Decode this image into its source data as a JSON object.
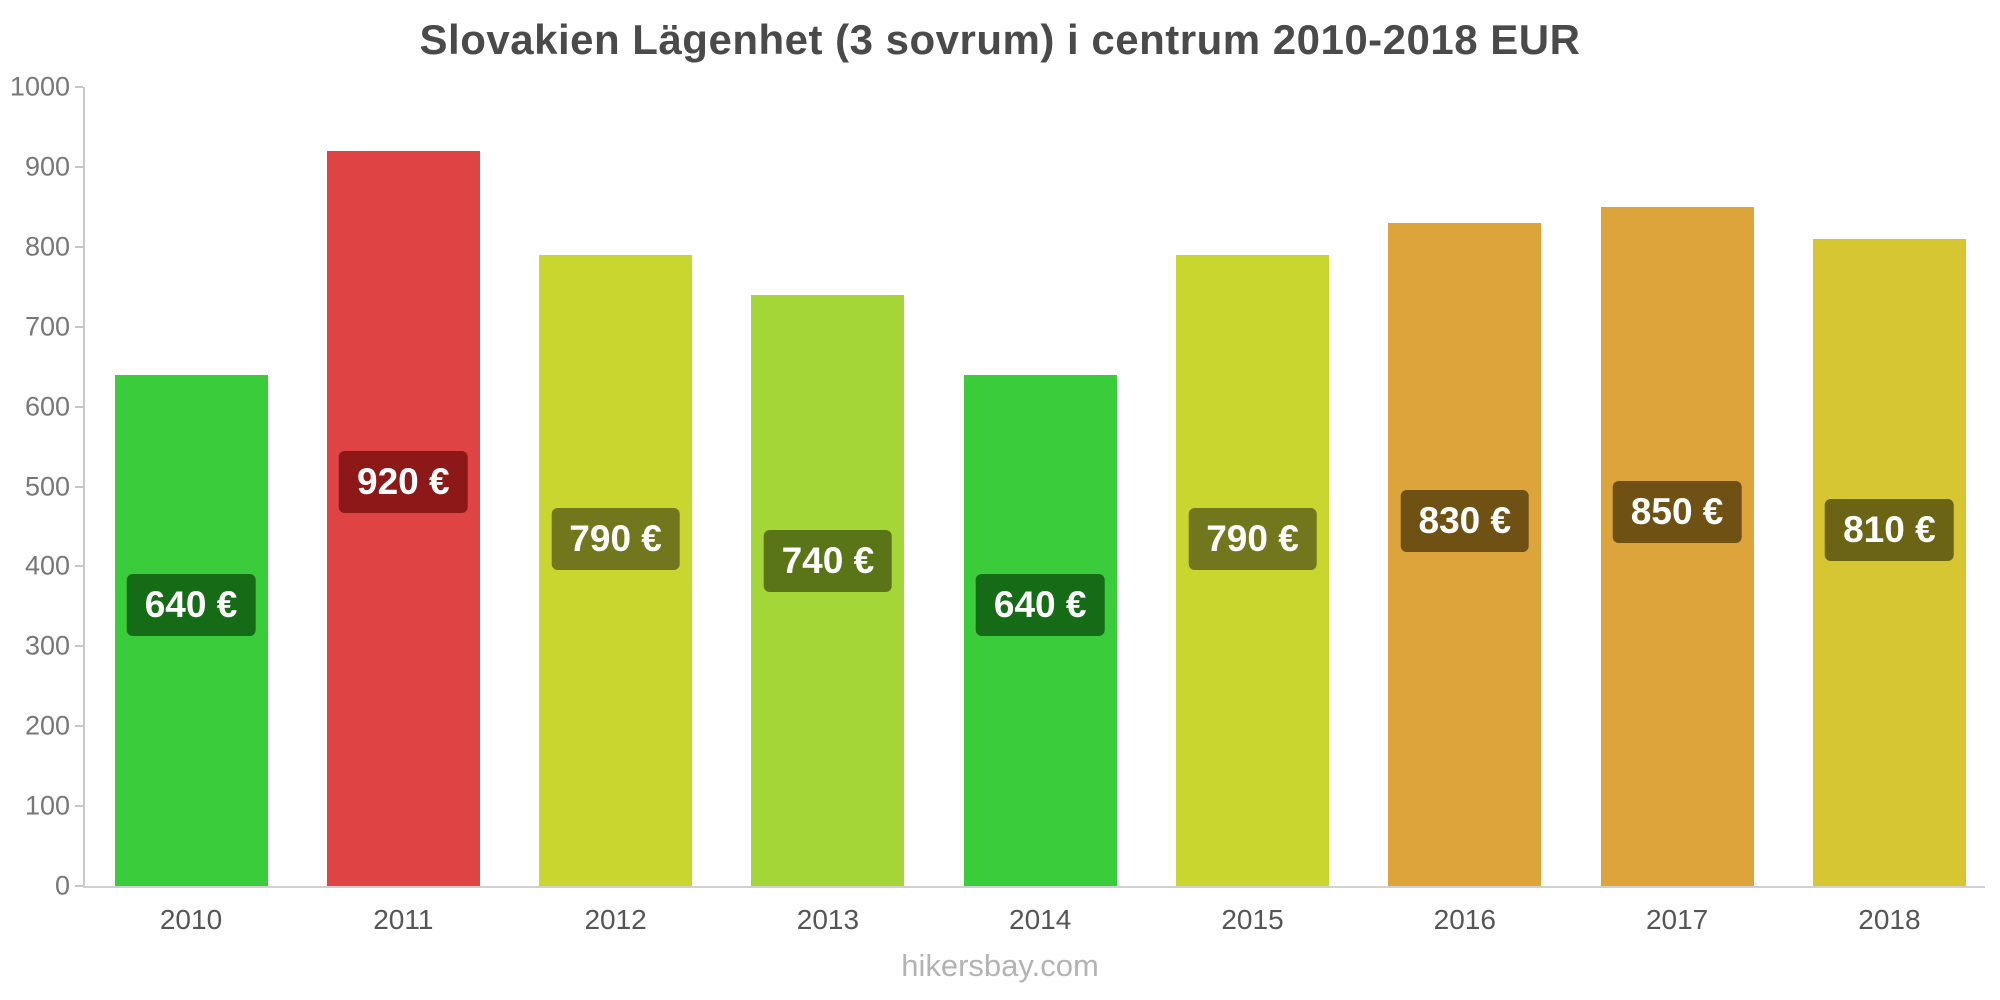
{
  "title": "Slovakien Lägenhet (3 sovrum) i centrum 2010-2018 EUR",
  "footer": "hikersbay.com",
  "chart_data": {
    "type": "bar",
    "title": "Slovakien Lägenhet (3 sovrum) i centrum 2010-2018 EUR",
    "xlabel": "",
    "ylabel": "",
    "ylim": [
      0,
      1000
    ],
    "y_ticks": [
      0,
      100,
      200,
      300,
      400,
      500,
      600,
      700,
      800,
      900,
      1000
    ],
    "grid": false,
    "legend": false,
    "categories": [
      "2010",
      "2011",
      "2012",
      "2013",
      "2014",
      "2015",
      "2016",
      "2017",
      "2018"
    ],
    "values": [
      640,
      920,
      790,
      740,
      640,
      790,
      830,
      850,
      810
    ],
    "value_labels": [
      "640 €",
      "920 €",
      "790 €",
      "740 €",
      "640 €",
      "790 €",
      "830 €",
      "850 €",
      "810 €"
    ],
    "bar_colors": [
      "#3bcc3b",
      "#e04343",
      "#c9d62f",
      "#a3d636",
      "#3bcc3b",
      "#c9d62f",
      "#dda43c",
      "#dda43c",
      "#d6c632"
    ],
    "badge_colors": [
      "#166b16",
      "#8c1818",
      "#72761c",
      "#5a7517",
      "#166b16",
      "#72761c",
      "#6f5213",
      "#6f5213",
      "#6b6414"
    ],
    "currency_unit": "EUR"
  }
}
